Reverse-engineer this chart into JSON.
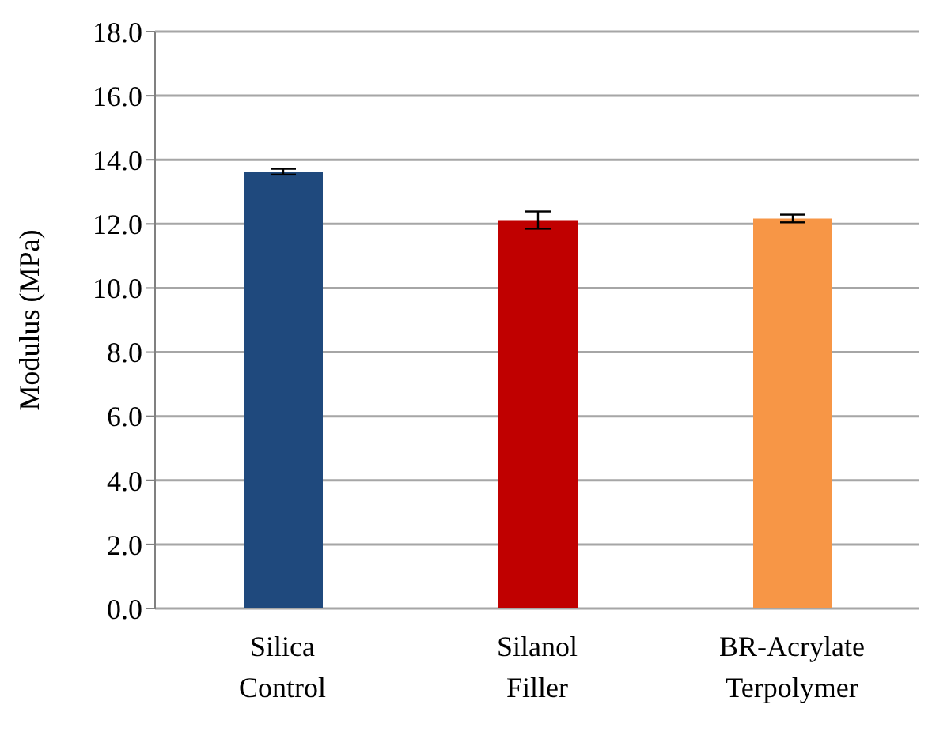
{
  "chart_data": {
    "type": "bar",
    "ylabel": "Modulus (MPa)",
    "categories": [
      "Silica Control",
      "Silanol Filler",
      "BR-Acrylate Terpolymer"
    ],
    "values": [
      13.63,
      12.12,
      12.17
    ],
    "errors": [
      0.09,
      0.27,
      0.12
    ],
    "colors": [
      "#1f497d",
      "#c00000",
      "#f79646"
    ],
    "ylim": [
      0,
      18
    ],
    "yticks": [
      {
        "value": 0,
        "label": "0.0"
      },
      {
        "value": 2,
        "label": "2.0"
      },
      {
        "value": 4,
        "label": "4.0"
      },
      {
        "value": 6,
        "label": "6.0"
      },
      {
        "value": 8,
        "label": "8.0"
      },
      {
        "value": 10,
        "label": "10.0"
      },
      {
        "value": 12,
        "label": "12.0"
      },
      {
        "value": 14,
        "label": "14.0"
      },
      {
        "value": 16,
        "label": "16.0"
      },
      {
        "value": 18,
        "label": "18.0"
      }
    ],
    "grid": "y",
    "legend": false
  }
}
